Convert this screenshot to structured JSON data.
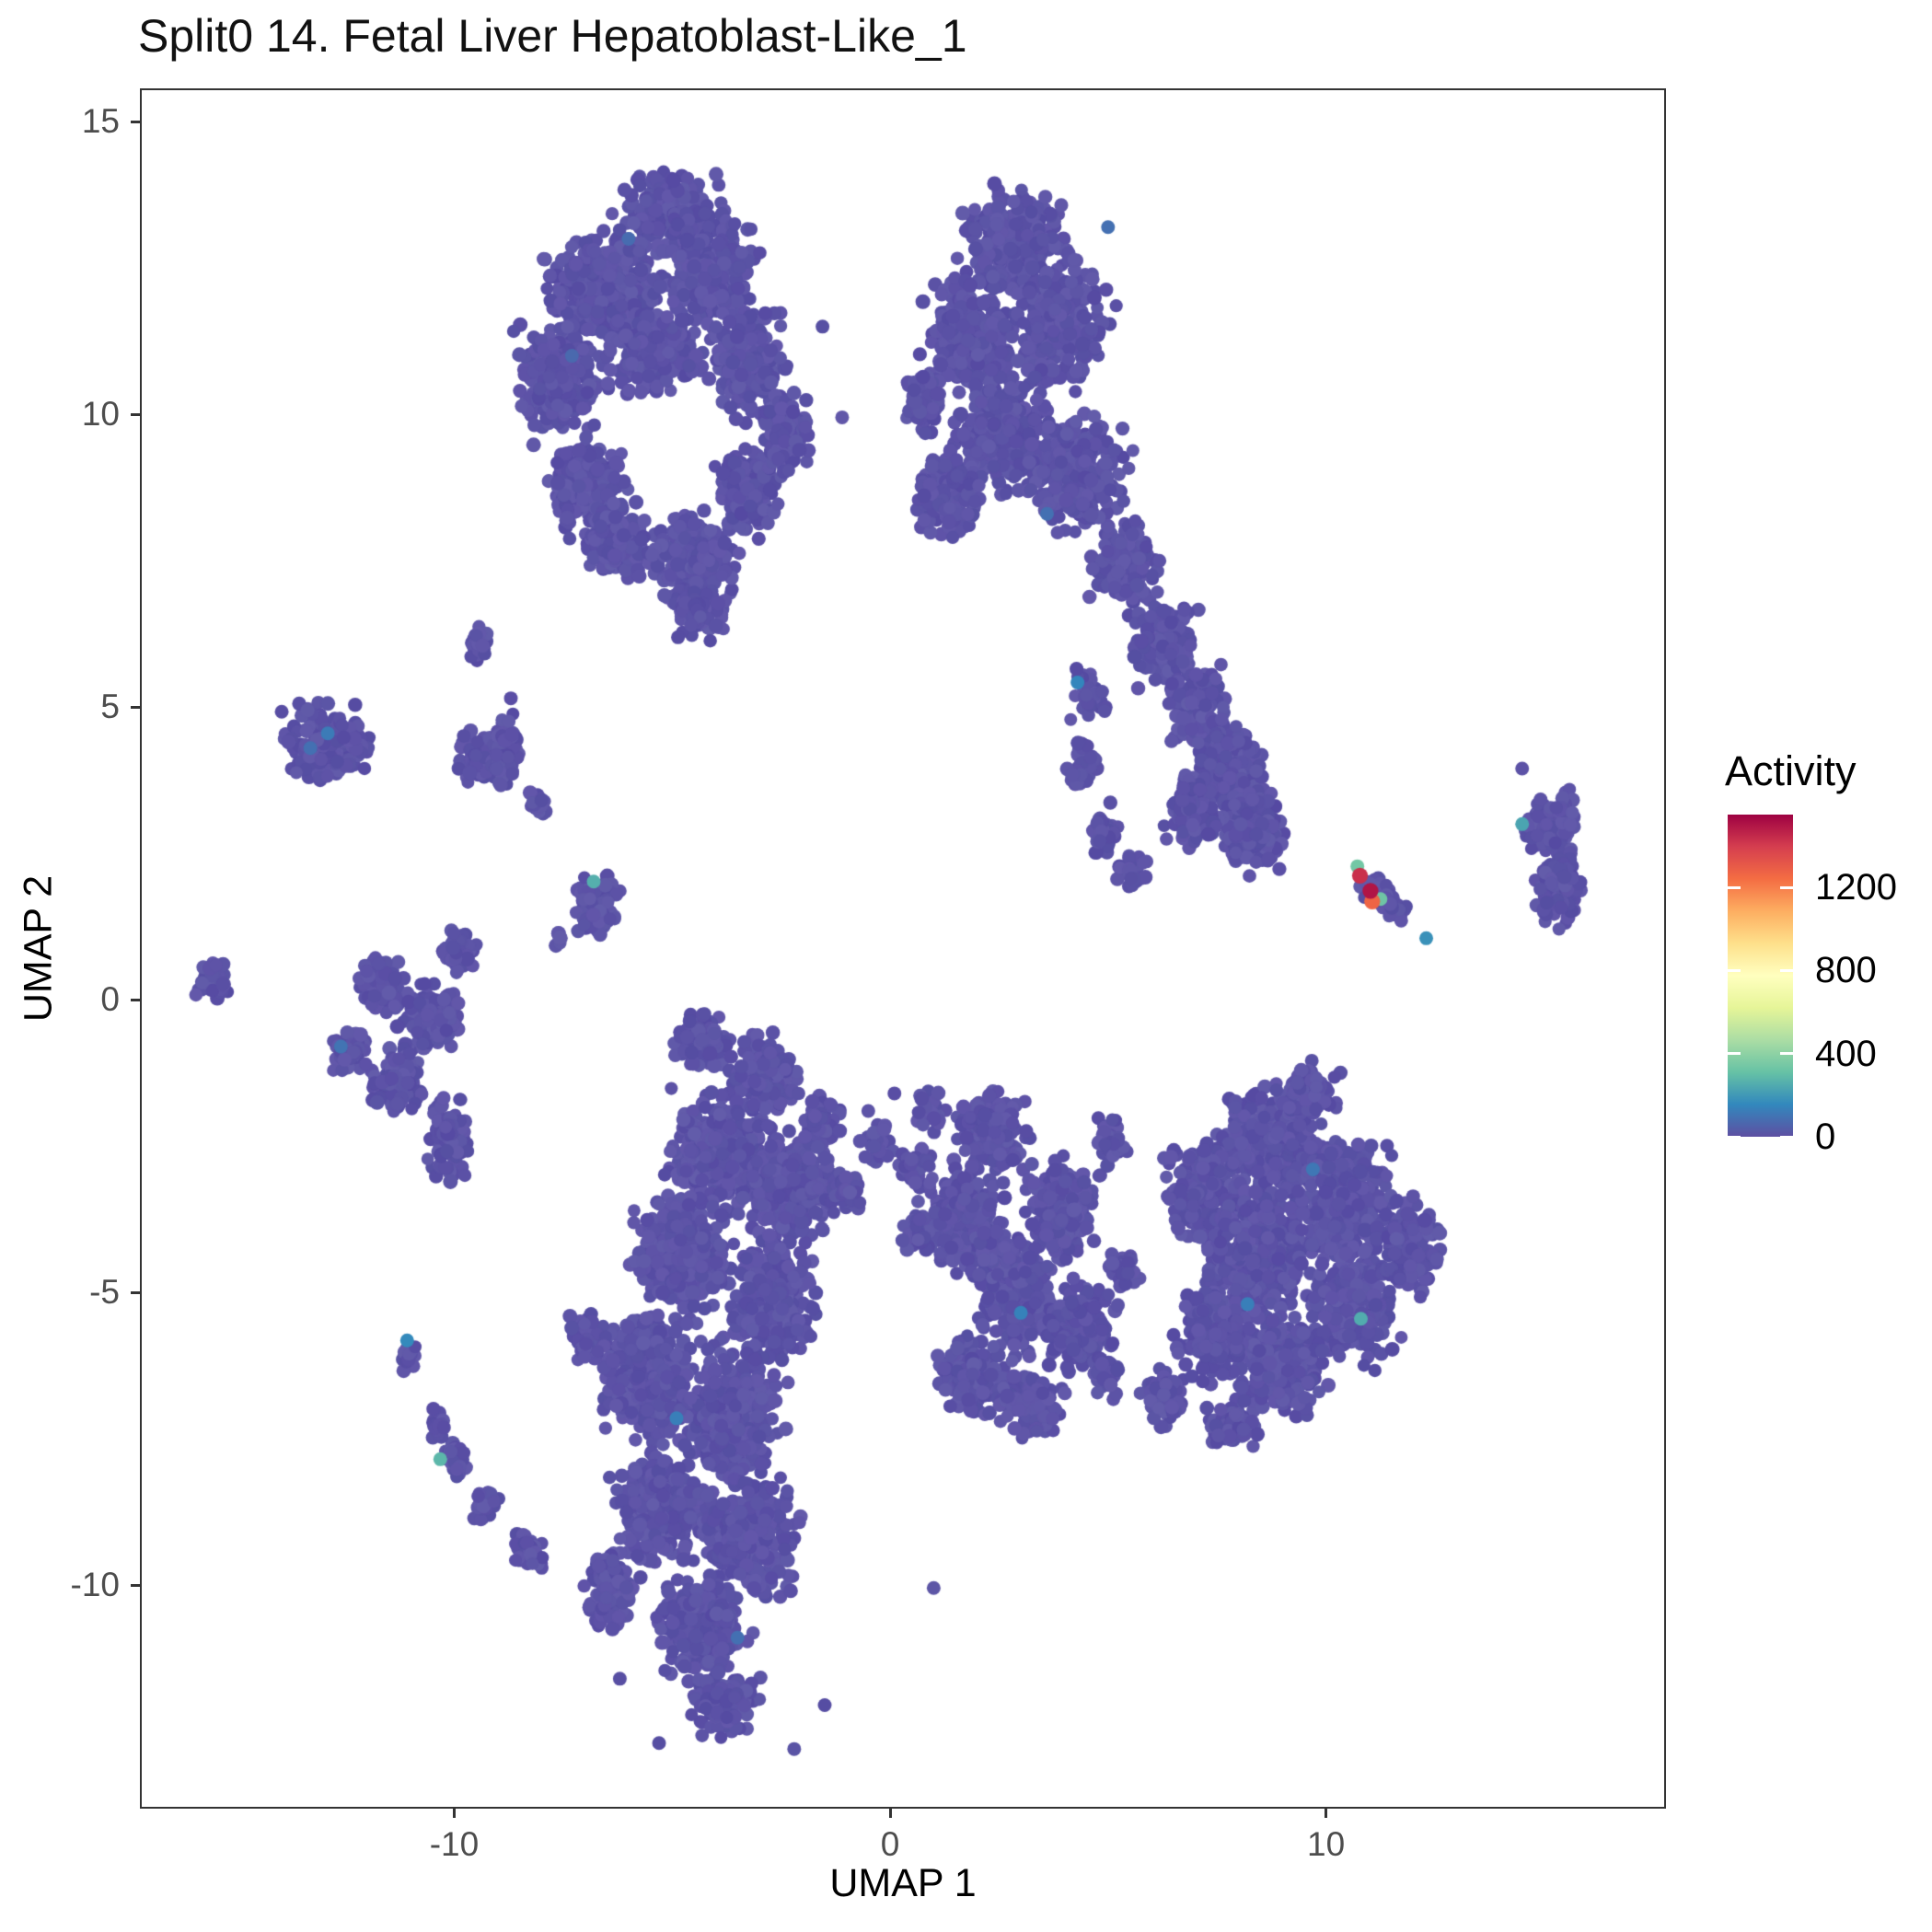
{
  "title": "Split0 14. Fetal Liver Hepatoblast-Like_1",
  "axes": {
    "x_label": "UMAP 1",
    "y_label": "UMAP 2",
    "x_ticks": [
      -10,
      0,
      10
    ],
    "y_ticks": [
      15,
      10,
      5,
      0,
      -5,
      -10
    ]
  },
  "legend": {
    "title": "Activity",
    "ticks": [
      0,
      400,
      800,
      1200
    ],
    "max": 1550
  },
  "colors": {
    "base_point": "#5C53A6",
    "panel_border": "#333333",
    "tick_text": "#4d4d4d",
    "axis_text": "#000000",
    "title_text": "#111111",
    "background": "#ffffff"
  },
  "chart_data": {
    "type": "scatter",
    "title": "Split0 14. Fetal Liver Hepatoblast-Like_1",
    "xlabel": "UMAP 1",
    "ylabel": "UMAP 2",
    "xlim": [
      -17.21,
      17.8
    ],
    "ylim": [
      -13.82,
      15.57
    ],
    "grid": false,
    "legend_position": "right",
    "legend_title": "Activity",
    "color_scale": {
      "name": "spectral_reversed",
      "domain": [
        0,
        1550
      ],
      "legend_ticks": [
        0,
        400,
        800,
        1200
      ],
      "stops": [
        "#5E4FA2",
        "#3288BD",
        "#66C2A5",
        "#ABDDA4",
        "#E6F598",
        "#FFFFBF",
        "#FEE08B",
        "#FDAE61",
        "#F46D43",
        "#D53E4F",
        "#9E0142"
      ]
    },
    "base_value": 0,
    "point_radius_px": 7.5,
    "clusters": [
      [
        -5.0,
        13.4,
        1.5,
        0.95,
        260
      ],
      [
        -6.6,
        12.1,
        1.7,
        1.25,
        380
      ],
      [
        -4.1,
        12.4,
        1.3,
        1.1,
        260
      ],
      [
        -7.6,
        10.6,
        1.15,
        1.35,
        240
      ],
      [
        -5.4,
        11.1,
        1.5,
        0.95,
        260
      ],
      [
        -3.3,
        10.9,
        1.05,
        1.2,
        200
      ],
      [
        -7.0,
        8.8,
        1.1,
        1.0,
        220
      ],
      [
        -6.3,
        7.9,
        0.95,
        0.85,
        150
      ],
      [
        -4.6,
        7.5,
        1.3,
        1.0,
        260
      ],
      [
        -4.4,
        6.6,
        0.7,
        0.6,
        90
      ],
      [
        -3.3,
        8.7,
        0.9,
        0.9,
        160
      ],
      [
        -2.4,
        9.6,
        0.7,
        0.85,
        110
      ],
      [
        -9.4,
        6.05,
        0.35,
        0.5,
        30
      ],
      [
        -9.5,
        4.15,
        0.55,
        0.65,
        65
      ],
      [
        -8.9,
        4.3,
        0.45,
        0.75,
        70
      ],
      [
        -8.05,
        3.35,
        0.3,
        0.3,
        18
      ],
      [
        2.9,
        13.0,
        1.5,
        1.05,
        280
      ],
      [
        1.9,
        11.4,
        1.35,
        1.4,
        300
      ],
      [
        3.9,
        11.6,
        1.4,
        1.4,
        300
      ],
      [
        2.6,
        9.7,
        1.4,
        1.3,
        320
      ],
      [
        4.3,
        9.0,
        1.4,
        1.2,
        300
      ],
      [
        1.3,
        8.6,
        1.0,
        1.05,
        170
      ],
      [
        5.4,
        7.4,
        1.0,
        1.0,
        170
      ],
      [
        6.3,
        6.1,
        0.9,
        0.9,
        140
      ],
      [
        7.0,
        5.0,
        0.9,
        0.9,
        140
      ],
      [
        7.8,
        3.9,
        1.0,
        1.0,
        170
      ],
      [
        8.3,
        2.9,
        1.0,
        0.95,
        170
      ],
      [
        7.0,
        3.2,
        0.85,
        0.8,
        120
      ],
      [
        0.8,
        10.3,
        0.6,
        0.85,
        80
      ],
      [
        4.6,
        5.2,
        0.5,
        0.6,
        40
      ],
      [
        4.4,
        4.0,
        0.45,
        0.7,
        35
      ],
      [
        4.9,
        2.9,
        0.5,
        0.6,
        35
      ],
      [
        5.6,
        2.2,
        0.5,
        0.45,
        30
      ],
      [
        11.3,
        1.75,
        0.8,
        0.32,
        55,
        -33
      ],
      [
        15.2,
        2.95,
        0.78,
        0.8,
        125
      ],
      [
        15.3,
        1.9,
        0.7,
        0.8,
        120
      ],
      [
        -12.9,
        4.4,
        1.25,
        0.85,
        190
      ],
      [
        -15.55,
        0.3,
        0.5,
        0.4,
        42
      ],
      [
        -6.75,
        1.6,
        0.68,
        0.62,
        110
      ],
      [
        -7.55,
        1.05,
        0.2,
        0.2,
        7
      ],
      [
        -11.7,
        0.3,
        0.65,
        0.6,
        90
      ],
      [
        -10.6,
        -0.3,
        0.9,
        0.75,
        160
      ],
      [
        -11.3,
        -1.45,
        0.75,
        0.7,
        110
      ],
      [
        -10.1,
        -2.45,
        0.6,
        0.95,
        100
      ],
      [
        -12.4,
        -0.9,
        0.5,
        0.45,
        60
      ],
      [
        -9.9,
        0.8,
        0.5,
        0.5,
        60
      ],
      [
        -4.3,
        -0.7,
        0.85,
        0.6,
        120
      ],
      [
        -2.9,
        -1.3,
        1.0,
        0.8,
        180
      ],
      [
        -3.9,
        -2.6,
        1.5,
        1.25,
        380
      ],
      [
        -2.2,
        -3.2,
        1.25,
        1.2,
        280
      ],
      [
        -4.8,
        -4.4,
        1.45,
        1.3,
        350
      ],
      [
        -2.7,
        -5.1,
        1.3,
        1.3,
        300
      ],
      [
        -5.6,
        -6.4,
        1.4,
        1.35,
        350
      ],
      [
        -3.6,
        -7.0,
        1.45,
        1.4,
        350
      ],
      [
        -5.2,
        -8.6,
        1.4,
        1.25,
        320
      ],
      [
        -3.2,
        -9.2,
        1.35,
        1.3,
        300
      ],
      [
        -4.3,
        -10.7,
        1.3,
        1.1,
        280
      ],
      [
        -3.8,
        -12.0,
        0.95,
        0.7,
        140
      ],
      [
        -6.4,
        -10.1,
        0.8,
        0.8,
        120
      ],
      [
        -1.6,
        -2.1,
        0.55,
        0.55,
        60
      ],
      [
        -1.0,
        -3.3,
        0.5,
        0.5,
        50
      ],
      [
        -6.9,
        -5.8,
        0.6,
        0.6,
        70
      ],
      [
        -8.3,
        -9.4,
        0.5,
        0.45,
        40
      ],
      [
        -9.3,
        -8.6,
        0.4,
        0.4,
        30
      ],
      [
        -10.0,
        -7.9,
        0.35,
        0.4,
        26
      ],
      [
        -10.4,
        -7.25,
        0.25,
        0.45,
        20
      ],
      [
        -11.05,
        -6.1,
        0.22,
        0.45,
        15
      ],
      [
        2.3,
        -2.3,
        1.0,
        0.9,
        170
      ],
      [
        1.6,
        -3.8,
        1.2,
        1.2,
        260
      ],
      [
        2.9,
        -5.0,
        1.3,
        1.3,
        280
      ],
      [
        1.9,
        -6.4,
        1.0,
        0.95,
        160
      ],
      [
        3.2,
        -6.9,
        0.9,
        0.7,
        130
      ],
      [
        3.9,
        -3.6,
        1.0,
        1.1,
        190
      ],
      [
        4.4,
        -5.6,
        1.0,
        1.0,
        170
      ],
      [
        5.1,
        -2.4,
        0.5,
        0.55,
        35
      ],
      [
        5.4,
        -4.6,
        0.5,
        0.55,
        35
      ],
      [
        5.0,
        -6.5,
        0.45,
        0.45,
        25
      ],
      [
        8.7,
        -2.4,
        1.5,
        1.15,
        300
      ],
      [
        7.2,
        -3.3,
        1.1,
        1.1,
        200
      ],
      [
        8.4,
        -4.4,
        1.6,
        1.5,
        380
      ],
      [
        10.3,
        -3.4,
        1.5,
        1.3,
        320
      ],
      [
        10.6,
        -5.2,
        1.3,
        1.3,
        280
      ],
      [
        8.9,
        -6.2,
        1.4,
        1.15,
        280
      ],
      [
        7.3,
        -5.7,
        1.0,
        1.0,
        170
      ],
      [
        11.9,
        -4.2,
        0.95,
        1.05,
        150
      ],
      [
        9.6,
        -1.6,
        0.85,
        0.6,
        100
      ],
      [
        7.8,
        -7.3,
        0.75,
        0.5,
        80
      ],
      [
        6.3,
        -6.8,
        0.6,
        0.6,
        70
      ],
      [
        -0.3,
        -2.4,
        0.5,
        0.5,
        30
      ],
      [
        0.5,
        -2.9,
        0.6,
        0.5,
        35
      ],
      [
        0.9,
        -1.9,
        0.5,
        0.45,
        25
      ],
      [
        0.6,
        -4.0,
        0.5,
        0.45,
        22
      ]
    ],
    "holes": [
      [
        -5.1,
        9.25,
        0.6
      ]
    ],
    "singles": [
      [
        1.0,
        -10.05
      ],
      [
        -1.55,
        11.5
      ],
      [
        -1.1,
        9.95
      ],
      [
        -8.7,
        5.15
      ],
      [
        14.5,
        3.95
      ],
      [
        -5.3,
        -12.7
      ],
      [
        -2.2,
        -12.8
      ],
      [
        -1.5,
        -12.05
      ],
      [
        -6.2,
        -11.6
      ],
      [
        0.1,
        -1.6
      ],
      [
        -0.5,
        -1.9
      ]
    ],
    "accent_points": [
      {
        "x": 5.0,
        "y": 13.2,
        "v": 90
      },
      {
        "x": -6.0,
        "y": 13.0,
        "v": 80
      },
      {
        "x": -7.3,
        "y": 11.0,
        "v": 70
      },
      {
        "x": 3.6,
        "y": 8.3,
        "v": 90
      },
      {
        "x": 4.3,
        "y": 5.42,
        "v": 150
      },
      {
        "x": 12.3,
        "y": 1.05,
        "v": 180
      },
      {
        "x": 14.5,
        "y": 3.0,
        "v": 230
      },
      {
        "x": -6.8,
        "y": 2.02,
        "v": 260
      },
      {
        "x": -12.9,
        "y": 4.55,
        "v": 120
      },
      {
        "x": -13.3,
        "y": 4.3,
        "v": 90
      },
      {
        "x": -12.6,
        "y": -0.8,
        "v": 100
      },
      {
        "x": -11.08,
        "y": -5.82,
        "v": 160
      },
      {
        "x": -10.32,
        "y": -7.85,
        "v": 280
      },
      {
        "x": -4.9,
        "y": -7.15,
        "v": 130
      },
      {
        "x": -3.5,
        "y": -10.9,
        "v": 90
      },
      {
        "x": 3.0,
        "y": -5.35,
        "v": 140
      },
      {
        "x": 8.2,
        "y": -5.2,
        "v": 130
      },
      {
        "x": 9.7,
        "y": -2.9,
        "v": 110
      },
      {
        "x": 10.8,
        "y": -5.45,
        "v": 250
      },
      {
        "x": 10.72,
        "y": 2.28,
        "v": 340
      },
      {
        "x": 11.25,
        "y": 1.72,
        "v": 330
      },
      {
        "x": 11.06,
        "y": 1.68,
        "v": 1270
      },
      {
        "x": 10.78,
        "y": 2.12,
        "v": 1430
      },
      {
        "x": 11.02,
        "y": 1.86,
        "v": 1500
      }
    ]
  }
}
